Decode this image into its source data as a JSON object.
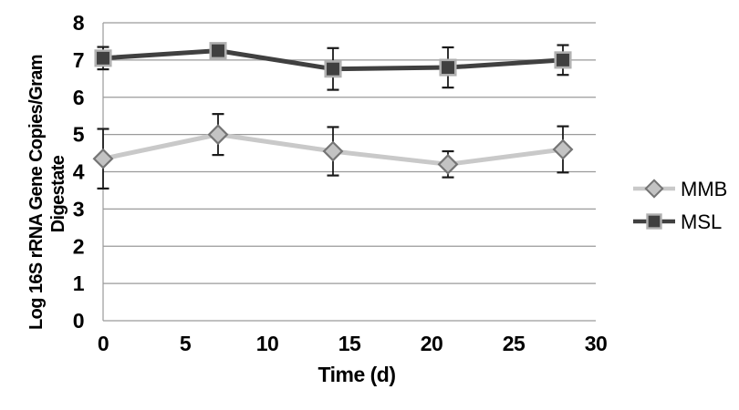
{
  "page": {
    "background": "#ffffff"
  },
  "chart_data": {
    "type": "line",
    "title": "",
    "xlabel": "Time (d)",
    "ylabel_line1": "Log 16S rRNA Gene Copies/Gram",
    "ylabel_line2": "Digestate",
    "x": [
      0,
      7,
      14,
      21,
      28
    ],
    "x_ticks": [
      0,
      5,
      10,
      15,
      20,
      25,
      30
    ],
    "y_ticks": [
      0,
      1,
      2,
      3,
      4,
      5,
      6,
      7,
      8
    ],
    "xlim": [
      0,
      30
    ],
    "ylim": [
      0,
      8
    ],
    "grid": "horizontal",
    "legend_position": "right",
    "series": [
      {
        "name": "MMB",
        "marker": "diamond",
        "values": [
          4.35,
          5.0,
          4.55,
          4.2,
          4.6
        ],
        "errors": [
          0.8,
          0.55,
          0.65,
          0.35,
          0.62
        ],
        "line_color": "#c9c9c9",
        "marker_fill": "#c3c3c3",
        "marker_border": "#757575"
      },
      {
        "name": "MSL",
        "marker": "square",
        "values": [
          7.05,
          7.25,
          6.76,
          6.8,
          7.0
        ],
        "errors": [
          0.3,
          0,
          0.56,
          0.54,
          0.4
        ],
        "line_color": "#404040",
        "marker_fill": "#404040",
        "marker_border": "#b0b0b0"
      }
    ],
    "error_bar_color": "#1a1a1a",
    "grid_color": "#9a9a9a",
    "axis_color": "#9a9a9a"
  }
}
